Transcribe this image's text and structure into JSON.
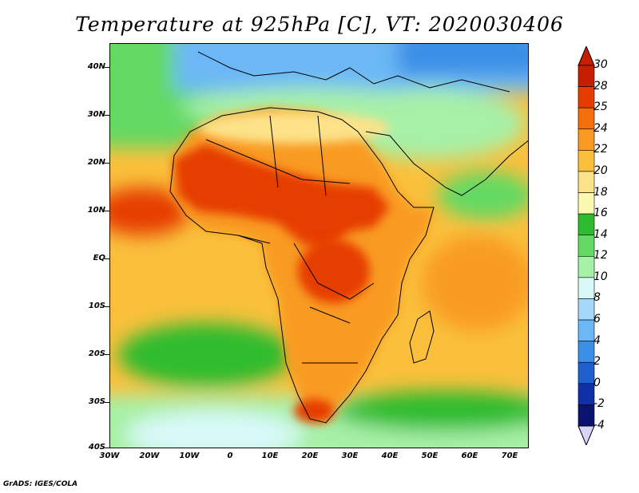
{
  "title": "Temperature at 925hPa [C], VT: 2020030406",
  "lat_labels": [
    "40N",
    "30N",
    "20N",
    "10N",
    "EQ",
    "10S",
    "20S",
    "30S",
    "40S"
  ],
  "lon_labels": [
    "30W",
    "20W",
    "10W",
    "0",
    "10E",
    "20E",
    "30E",
    "40E",
    "50E",
    "60E",
    "70E"
  ],
  "colorbar": {
    "levels": [
      "30",
      "28",
      "25",
      "24",
      "22",
      "20",
      "18",
      "16",
      "14",
      "12",
      "10",
      "8",
      "6",
      "4",
      "2",
      "0",
      "-2",
      "-4"
    ],
    "colors": [
      "#c81e00",
      "#e63c00",
      "#f56f0a",
      "#f99b22",
      "#fac03c",
      "#fde289",
      "#fbf8b0",
      "#2ebc2e",
      "#64d964",
      "#a7f0a7",
      "#d9f9f9",
      "#a6d8fb",
      "#6cb8f6",
      "#3b8fe6",
      "#1f60d0",
      "#1030a8",
      "#0a1470",
      "#d8d6f8"
    ],
    "top_color": "#c81e00",
    "bottom_color": "#d8d6f8"
  },
  "map_colors": {
    "ocean_cool": "#a7f0a7",
    "ocean_green": "#2ebc2e",
    "ocean_warm": "#fac03c",
    "land_warm": "#f99b22",
    "land_hot": "#e63c00",
    "med_cold": "#6cb8f6",
    "europe_cold": "#3b8fe6",
    "northeast_cold": "#1f60d0",
    "boundary": "#000000"
  },
  "credit": "GrADS: IGES/COLA"
}
